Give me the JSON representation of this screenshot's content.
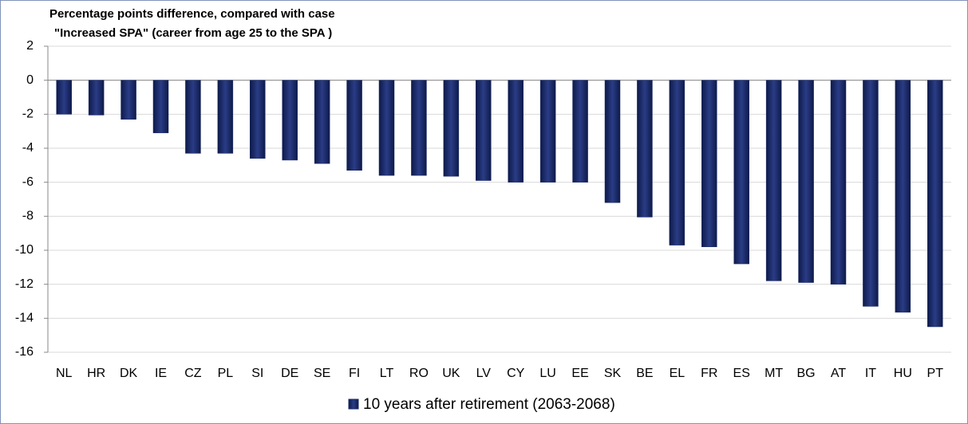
{
  "chart_data": {
    "type": "bar",
    "title_lines": [
      "Percentage points difference, compared with case",
      "\"Increased SPA\" (career from age 25 to the SPA )"
    ],
    "categories": [
      "NL",
      "HR",
      "DK",
      "IE",
      "CZ",
      "PL",
      "SI",
      "DE",
      "SE",
      "FI",
      "LT",
      "RO",
      "UK",
      "LV",
      "CY",
      "LU",
      "EE",
      "SK",
      "BE",
      "EL",
      "FR",
      "ES",
      "MT",
      "BG",
      "AT",
      "IT",
      "HU",
      "PT"
    ],
    "series": [
      {
        "name": "10 years after retirement (2063-2068)",
        "color": "#1b2a66",
        "values": [
          -2.0,
          -2.05,
          -2.3,
          -3.1,
          -4.3,
          -4.3,
          -4.6,
          -4.7,
          -4.9,
          -5.3,
          -5.6,
          -5.6,
          -5.65,
          -5.9,
          -6.0,
          -6.0,
          -6.0,
          -7.2,
          -8.05,
          -9.7,
          -9.8,
          -10.8,
          -11.8,
          -11.9,
          -12.0,
          -13.3,
          -13.65,
          -14.5
        ]
      }
    ],
    "ylim": [
      -16,
      2
    ],
    "yticks": [
      2,
      0,
      -2,
      -4,
      -6,
      -8,
      -10,
      -12,
      -14,
      -16
    ],
    "grid": true,
    "legend": "bottom"
  }
}
